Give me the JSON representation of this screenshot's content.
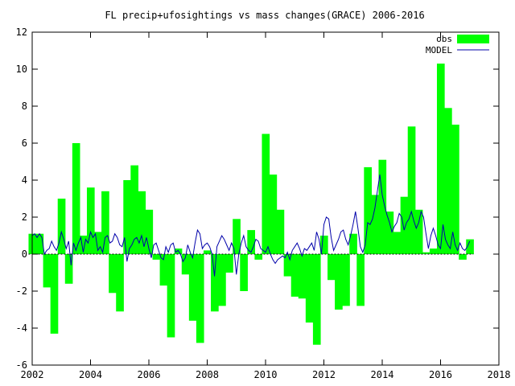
{
  "chart_data": {
    "type": "bar",
    "title": "FL precip+ufosightings vs mass changes(GRACE) 2006-2016",
    "xlabel": "",
    "ylabel": "",
    "xlim": [
      2002,
      2018
    ],
    "ylim": [
      -6,
      12
    ],
    "x_ticks": [
      2002,
      2004,
      2006,
      2008,
      2010,
      2012,
      2014,
      2016,
      2018
    ],
    "y_ticks": [
      -6,
      -4,
      -2,
      0,
      2,
      4,
      6,
      8,
      10,
      12
    ],
    "grid": false,
    "legend": "top-right",
    "series": [
      {
        "name": "obs",
        "style": "boxes",
        "color": "#00ff00",
        "bar_width": 0.25,
        "x": [
          2002.0,
          2002.25,
          2002.5,
          2002.75,
          2003.0,
          2003.25,
          2003.5,
          2003.75,
          2004.0,
          2004.25,
          2004.5,
          2004.75,
          2005.0,
          2005.25,
          2005.5,
          2005.75,
          2006.0,
          2006.25,
          2006.5,
          2006.75,
          2007.0,
          2007.25,
          2007.5,
          2007.75,
          2008.0,
          2008.25,
          2008.5,
          2008.75,
          2009.0,
          2009.25,
          2009.5,
          2009.75,
          2010.0,
          2010.25,
          2010.5,
          2010.75,
          2011.0,
          2011.25,
          2011.5,
          2011.75,
          2012.0,
          2012.25,
          2012.5,
          2012.75,
          2013.0,
          2013.25,
          2013.5,
          2013.75,
          2014.0,
          2014.25,
          2014.5,
          2014.75,
          2015.0,
          2015.25,
          2015.5,
          2015.75,
          2016.0,
          2016.25,
          2016.5,
          2016.75,
          2017.0
        ],
        "values": [
          1.1,
          1.1,
          -1.8,
          -4.3,
          3.0,
          -1.6,
          6.0,
          1.0,
          3.6,
          1.2,
          3.4,
          -2.1,
          -3.1,
          4.0,
          4.8,
          3.4,
          2.4,
          -0.3,
          -1.7,
          -4.5,
          0.3,
          -1.1,
          -3.6,
          -4.8,
          0.2,
          -3.1,
          -2.8,
          -1.0,
          1.9,
          -2.0,
          1.3,
          -0.3,
          6.5,
          4.3,
          2.4,
          -1.2,
          -2.3,
          -2.4,
          -3.7,
          -4.9,
          1.0,
          -1.4,
          -3.0,
          -2.8,
          1.1,
          -2.8,
          4.7,
          3.2,
          5.1,
          2.3,
          1.2,
          3.1,
          6.9,
          2.4,
          0.1,
          0.3,
          10.3,
          7.9,
          7.0,
          -0.3,
          0.8
        ]
      },
      {
        "name": "MODEL",
        "style": "line",
        "color": "#0000aa",
        "x": [
          2002.0,
          2002.083,
          2002.167,
          2002.25,
          2002.333,
          2002.417,
          2002.5,
          2002.583,
          2002.667,
          2002.75,
          2002.833,
          2002.917,
          2003.0,
          2003.083,
          2003.167,
          2003.25,
          2003.333,
          2003.417,
          2003.5,
          2003.583,
          2003.667,
          2003.75,
          2003.833,
          2003.917,
          2004.0,
          2004.083,
          2004.167,
          2004.25,
          2004.333,
          2004.417,
          2004.5,
          2004.583,
          2004.667,
          2004.75,
          2004.833,
          2004.917,
          2005.0,
          2005.083,
          2005.167,
          2005.25,
          2005.333,
          2005.417,
          2005.5,
          2005.583,
          2005.667,
          2005.75,
          2005.833,
          2005.917,
          2006.0,
          2006.083,
          2006.167,
          2006.25,
          2006.333,
          2006.417,
          2006.5,
          2006.583,
          2006.667,
          2006.75,
          2006.833,
          2006.917,
          2007.0,
          2007.083,
          2007.167,
          2007.25,
          2007.333,
          2007.417,
          2007.5,
          2007.583,
          2007.667,
          2007.75,
          2007.833,
          2007.917,
          2008.0,
          2008.083,
          2008.167,
          2008.25,
          2008.333,
          2008.417,
          2008.5,
          2008.583,
          2008.667,
          2008.75,
          2008.833,
          2008.917,
          2009.0,
          2009.083,
          2009.167,
          2009.25,
          2009.333,
          2009.417,
          2009.5,
          2009.583,
          2009.667,
          2009.75,
          2009.833,
          2009.917,
          2010.0,
          2010.083,
          2010.167,
          2010.25,
          2010.333,
          2010.417,
          2010.5,
          2010.583,
          2010.667,
          2010.75,
          2010.833,
          2010.917,
          2011.0,
          2011.083,
          2011.167,
          2011.25,
          2011.333,
          2011.417,
          2011.5,
          2011.583,
          2011.667,
          2011.75,
          2011.833,
          2011.917,
          2012.0,
          2012.083,
          2012.167,
          2012.25,
          2012.333,
          2012.417,
          2012.5,
          2012.583,
          2012.667,
          2012.75,
          2012.833,
          2012.917,
          2013.0,
          2013.083,
          2013.167,
          2013.25,
          2013.333,
          2013.417,
          2013.5,
          2013.583,
          2013.667,
          2013.75,
          2013.833,
          2013.917,
          2014.0,
          2014.083,
          2014.167,
          2014.25,
          2014.333,
          2014.417,
          2014.5,
          2014.583,
          2014.667,
          2014.75,
          2014.833,
          2014.917,
          2015.0,
          2015.083,
          2015.167,
          2015.25,
          2015.333,
          2015.417,
          2015.5,
          2015.583,
          2015.667,
          2015.75,
          2015.833,
          2015.917,
          2016.0,
          2016.083,
          2016.167,
          2016.25,
          2016.333,
          2016.417,
          2016.5,
          2016.583,
          2016.667,
          2016.75,
          2016.833,
          2016.917,
          2017.0
        ],
        "values": [
          1.0,
          1.1,
          0.9,
          1.1,
          0.9,
          0.0,
          0.2,
          0.3,
          0.7,
          0.4,
          0.2,
          0.6,
          1.2,
          0.8,
          0.3,
          0.7,
          -0.6,
          0.6,
          0.2,
          0.6,
          0.9,
          0.1,
          0.8,
          0.6,
          1.2,
          0.9,
          1.1,
          0.2,
          0.4,
          0.1,
          0.9,
          1.0,
          0.6,
          0.7,
          1.1,
          0.9,
          0.5,
          0.4,
          0.9,
          -0.4,
          0.3,
          0.5,
          0.8,
          0.9,
          0.6,
          1.0,
          0.4,
          0.9,
          0.3,
          -0.2,
          0.5,
          0.6,
          0.2,
          -0.2,
          -0.3,
          0.4,
          0.1,
          0.5,
          0.6,
          0.1,
          0.2,
          0.0,
          -0.4,
          -0.2,
          0.5,
          0.1,
          -0.2,
          0.6,
          1.3,
          1.1,
          0.3,
          0.5,
          0.6,
          0.4,
          0.0,
          -1.2,
          0.4,
          0.7,
          1.0,
          0.8,
          0.5,
          0.2,
          0.6,
          0.3,
          -1.1,
          0.0,
          0.6,
          1.0,
          0.4,
          0.2,
          0.1,
          0.4,
          0.8,
          0.7,
          0.3,
          0.2,
          0.1,
          0.4,
          0.0,
          -0.3,
          -0.5,
          -0.3,
          -0.2,
          -0.1,
          -0.2,
          0.1,
          -0.3,
          0.2,
          0.4,
          0.6,
          0.3,
          -0.1,
          0.3,
          0.2,
          0.4,
          0.6,
          0.2,
          1.2,
          0.8,
          0.0,
          1.6,
          2.0,
          1.9,
          0.9,
          0.2,
          0.5,
          0.8,
          1.2,
          1.3,
          0.8,
          0.5,
          1.0,
          1.6,
          2.3,
          1.4,
          0.4,
          0.1,
          0.5,
          1.7,
          1.6,
          1.9,
          2.5,
          3.4,
          4.3,
          3.2,
          2.6,
          2.1,
          1.7,
          1.2,
          1.5,
          1.7,
          2.2,
          2.0,
          1.3,
          1.7,
          1.9,
          2.3,
          1.8,
          1.4,
          1.7,
          2.3,
          2.0,
          1.1,
          0.3,
          1.0,
          1.4,
          1.0,
          0.5,
          0.3,
          1.6,
          0.8,
          0.5,
          0.3,
          1.2,
          0.5,
          0.2,
          0.6,
          0.3,
          0.2,
          0.4,
          0.7
        ]
      }
    ]
  }
}
